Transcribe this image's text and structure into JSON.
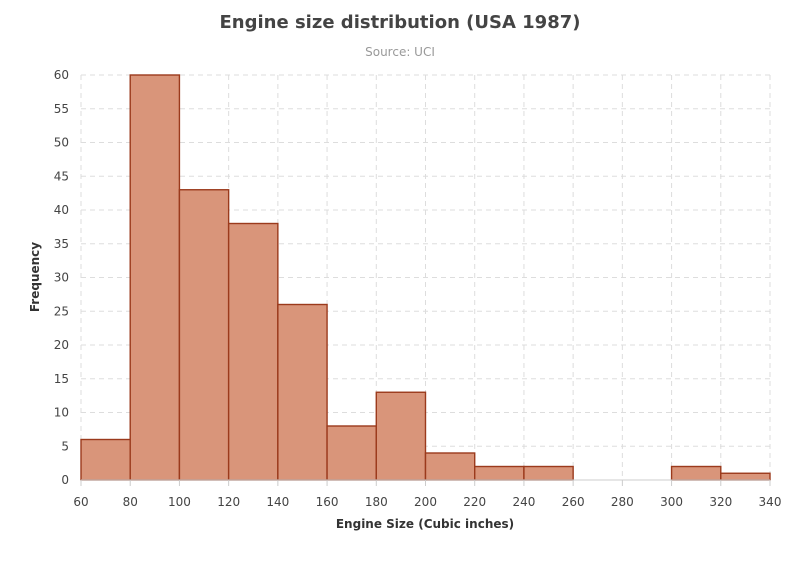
{
  "chart_data": {
    "type": "bar",
    "title": "Engine size distribution (USA 1987)",
    "subtitle": "Source: UCI",
    "xlabel": "Engine Size (Cubic inches)",
    "ylabel": "Frequency",
    "bin_edges": [
      60,
      80,
      100,
      120,
      140,
      160,
      180,
      200,
      220,
      240,
      260,
      280,
      300,
      320,
      340
    ],
    "values": [
      6,
      60,
      43,
      38,
      26,
      8,
      13,
      4,
      2,
      2,
      0,
      0,
      2,
      1
    ],
    "xlim": [
      60,
      340
    ],
    "ylim": [
      0,
      60
    ],
    "x_ticks": [
      60,
      80,
      100,
      120,
      140,
      160,
      180,
      200,
      220,
      240,
      260,
      280,
      300,
      320,
      340
    ],
    "y_ticks": [
      0,
      5,
      10,
      15,
      20,
      25,
      30,
      35,
      40,
      45,
      50,
      55,
      60
    ],
    "grid": true,
    "bar_color": "#d9957a",
    "bar_border_color": "#9b3a1c"
  }
}
